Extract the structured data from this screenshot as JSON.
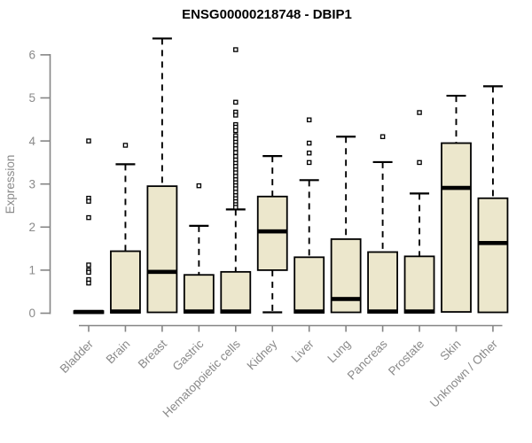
{
  "title": "ENSG00000218748 - DBIP1",
  "colors": {
    "background": "#ffffff",
    "box_fill": "#ECE7CC",
    "box_stroke": "#000000",
    "median": "#000000",
    "whisker": "#000000",
    "axis": "#858585",
    "tick_label": "#8a8a8a",
    "title": "#000000"
  },
  "chart_data": {
    "type": "boxplot",
    "title": "ENSG00000218748 - DBIP1",
    "xlabel": "",
    "ylabel": "Expression",
    "ylim": [
      0,
      6.5
    ],
    "yticks": [
      0,
      1,
      2,
      3,
      4,
      5,
      6
    ],
    "grid": false,
    "legend": false,
    "categories": [
      "Bladder",
      "Brain",
      "Breast",
      "Gastric",
      "Hematopoietic cells",
      "Kidney",
      "Liver",
      "Lung",
      "Pancreas",
      "Prostate",
      "Skin",
      "Unknown / Other"
    ],
    "series": [
      {
        "name": "Bladder",
        "whislo": 0,
        "q1": 0,
        "med": 0.03,
        "q3": 0.05,
        "whishi": 0.05,
        "outliers": [
          4.0,
          2.67,
          2.6,
          2.22,
          1.12,
          1.0,
          0.95,
          0.78,
          0.7
        ]
      },
      {
        "name": "Brain",
        "whislo": 0,
        "q1": 0.01,
        "med": 0.04,
        "q3": 1.44,
        "whishi": 3.46,
        "outliers": [
          3.9
        ]
      },
      {
        "name": "Breast",
        "whislo": 0,
        "q1": 0.02,
        "med": 0.96,
        "q3": 2.95,
        "whishi": 6.38,
        "outliers": []
      },
      {
        "name": "Gastric",
        "whislo": 0,
        "q1": 0.01,
        "med": 0.04,
        "q3": 0.89,
        "whishi": 2.03,
        "outliers": [
          2.96
        ]
      },
      {
        "name": "Hematopoietic cells",
        "whislo": 0,
        "q1": 0.01,
        "med": 0.04,
        "q3": 0.96,
        "whishi": 2.41,
        "outliers": [
          6.12,
          4.9,
          4.67,
          4.6,
          4.38,
          4.32,
          4.24,
          4.12,
          4.05,
          3.97,
          3.9,
          3.82,
          3.73,
          3.64,
          3.56,
          3.48,
          3.41,
          3.33,
          3.26,
          3.18,
          3.1,
          3.03,
          2.96,
          2.89,
          2.81,
          2.73,
          2.66,
          2.59,
          2.52,
          2.46
        ]
      },
      {
        "name": "Kidney",
        "whislo": 0.02,
        "q1": 1.0,
        "med": 1.9,
        "q3": 2.71,
        "whishi": 3.65,
        "outliers": []
      },
      {
        "name": "Liver",
        "whislo": 0,
        "q1": 0.01,
        "med": 0.04,
        "q3": 1.3,
        "whishi": 3.09,
        "outliers": [
          4.49,
          3.95,
          3.72,
          3.5
        ]
      },
      {
        "name": "Lung",
        "whislo": 0,
        "q1": 0.02,
        "med": 0.33,
        "q3": 1.72,
        "whishi": 4.1,
        "outliers": []
      },
      {
        "name": "Pancreas",
        "whislo": 0,
        "q1": 0.01,
        "med": 0.04,
        "q3": 1.42,
        "whishi": 3.51,
        "outliers": [
          4.1
        ]
      },
      {
        "name": "Prostate",
        "whislo": 0,
        "q1": 0.01,
        "med": 0.04,
        "q3": 1.32,
        "whishi": 2.78,
        "outliers": [
          4.66,
          3.5
        ]
      },
      {
        "name": "Skin",
        "whislo": 0,
        "q1": 0.03,
        "med": 2.91,
        "q3": 3.95,
        "whishi": 5.05,
        "outliers": []
      },
      {
        "name": "Unknown / Other",
        "whislo": 0,
        "q1": 0.02,
        "med": 1.63,
        "q3": 2.67,
        "whishi": 5.27,
        "outliers": []
      }
    ]
  }
}
